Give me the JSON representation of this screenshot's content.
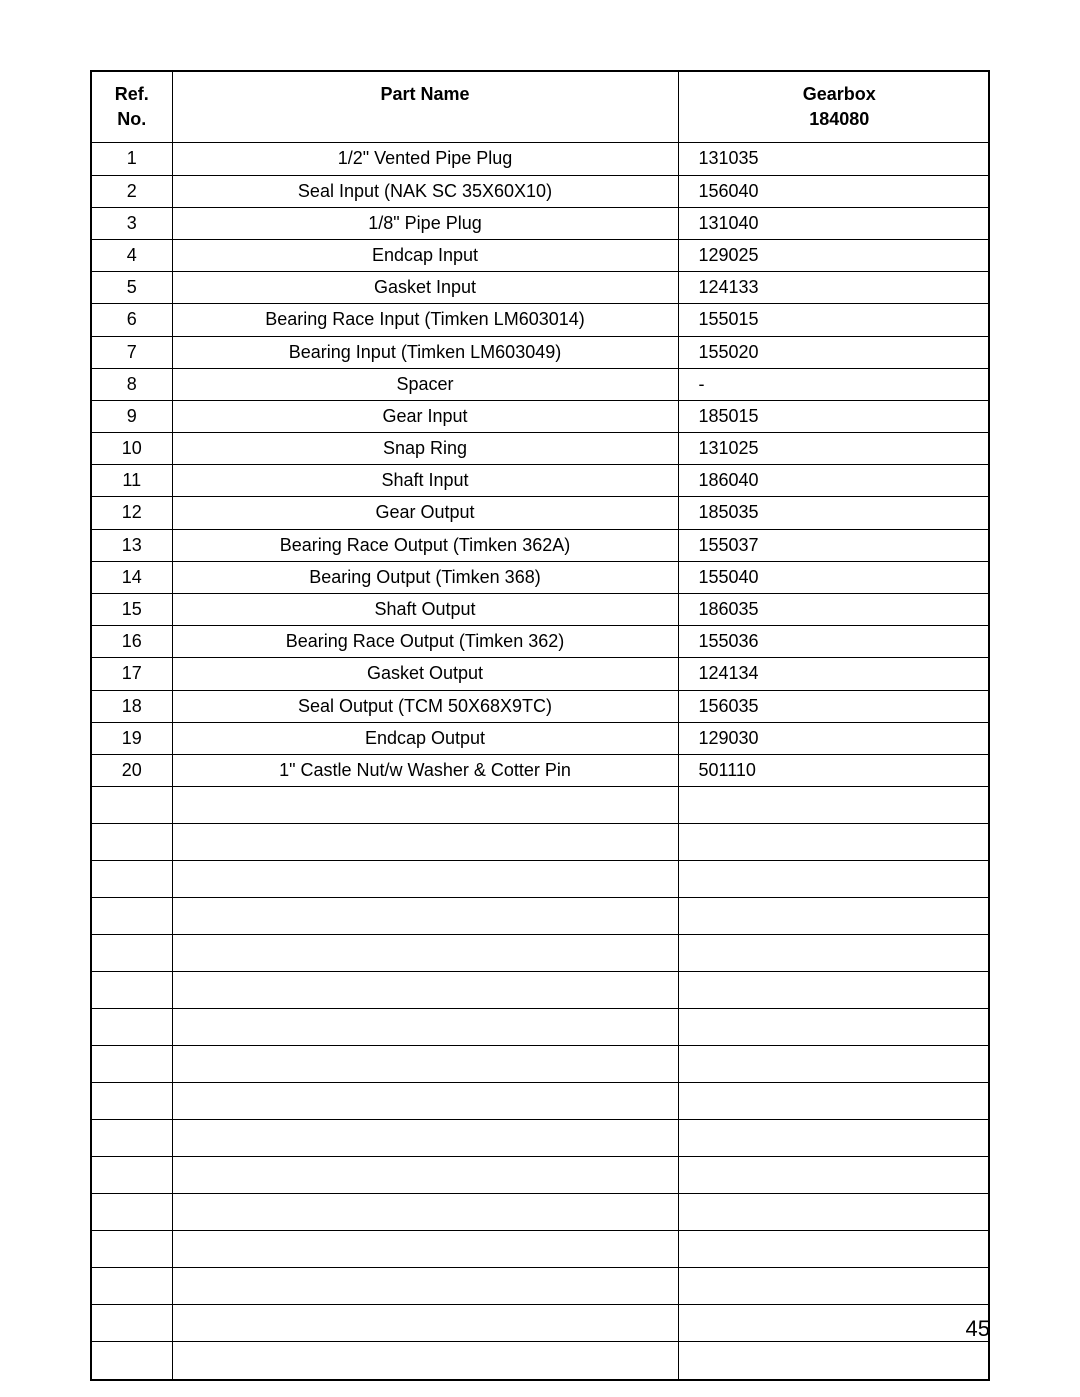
{
  "table": {
    "headers": {
      "ref_line1": "Ref.",
      "ref_line2": "No.",
      "name": "Part Name",
      "gearbox_line1": "Gearbox",
      "gearbox_line2": "184080"
    },
    "rows": [
      {
        "ref": "1",
        "name": "1/2\" Vented Pipe Plug",
        "gearbox": "131035"
      },
      {
        "ref": "2",
        "name": "Seal Input (NAK SC 35X60X10)",
        "gearbox": "156040"
      },
      {
        "ref": "3",
        "name": "1/8\" Pipe Plug",
        "gearbox": "131040"
      },
      {
        "ref": "4",
        "name": "Endcap Input",
        "gearbox": "129025"
      },
      {
        "ref": "5",
        "name": "Gasket Input",
        "gearbox": "124133"
      },
      {
        "ref": "6",
        "name": "Bearing Race Input (Timken LM603014)",
        "gearbox": "155015"
      },
      {
        "ref": "7",
        "name": "Bearing Input (Timken LM603049)",
        "gearbox": "155020"
      },
      {
        "ref": "8",
        "name": "Spacer",
        "gearbox": "-"
      },
      {
        "ref": "9",
        "name": "Gear Input",
        "gearbox": "185015"
      },
      {
        "ref": "10",
        "name": "Snap Ring",
        "gearbox": "131025"
      },
      {
        "ref": "11",
        "name": "Shaft Input",
        "gearbox": "186040"
      },
      {
        "ref": "12",
        "name": "Gear Output",
        "gearbox": "185035"
      },
      {
        "ref": "13",
        "name": "Bearing Race Output (Timken 362A)",
        "gearbox": "155037"
      },
      {
        "ref": "14",
        "name": "Bearing Output (Timken 368)",
        "gearbox": "155040"
      },
      {
        "ref": "15",
        "name": "Shaft Output",
        "gearbox": "186035"
      },
      {
        "ref": "16",
        "name": "Bearing Race Output (Timken 362)",
        "gearbox": "155036"
      },
      {
        "ref": "17",
        "name": "Gasket Output",
        "gearbox": "124134"
      },
      {
        "ref": "18",
        "name": "Seal Output (TCM 50X68X9TC)",
        "gearbox": "156035"
      },
      {
        "ref": "19",
        "name": "Endcap Output",
        "gearbox": "129030"
      },
      {
        "ref": "20",
        "name": "1\" Castle Nut/w Washer & Cotter Pin",
        "gearbox": "501110"
      }
    ],
    "empty_rows_count": 16
  },
  "page_number": "45"
}
